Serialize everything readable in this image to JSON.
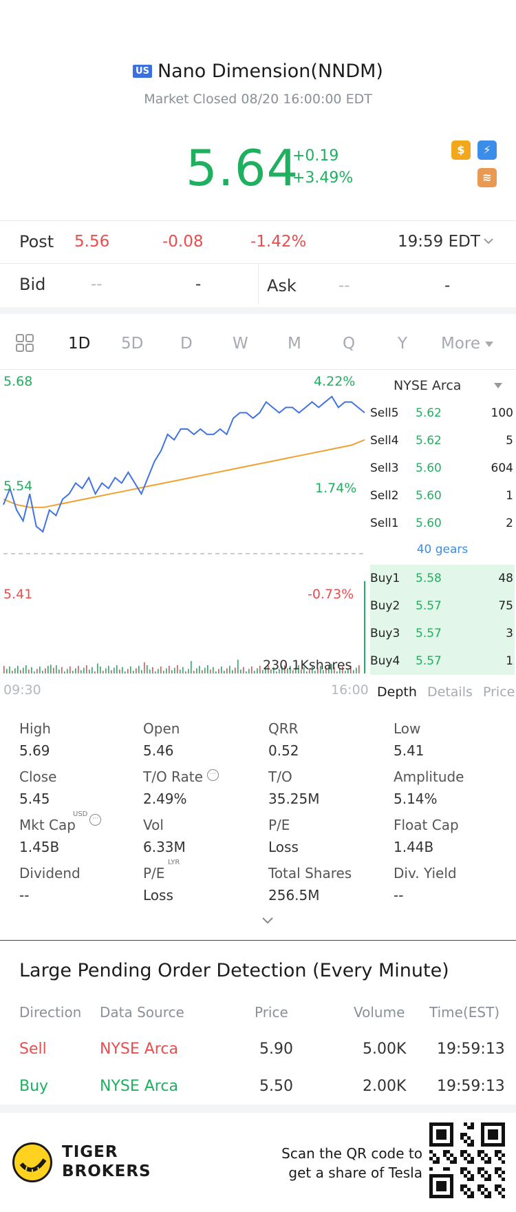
{
  "header": {
    "market_flag": "US",
    "title": "Nano Dimension(NNDM)",
    "status": "Market Closed 08/20 16:00:00 EDT",
    "price": "5.64",
    "change_abs": "+0.19",
    "change_pct": "+3.49%",
    "badges": [
      "dollar-icon",
      "flash-icon",
      "stack-icon"
    ]
  },
  "post": {
    "label": "Post",
    "price": "5.56",
    "change": "-0.08",
    "pct": "-1.42%",
    "time": "19:59 EDT"
  },
  "bid_ask": {
    "bid_label": "Bid",
    "bid_price": "--",
    "bid_size": "-",
    "ask_label": "Ask",
    "ask_price": "--",
    "ask_size": "-"
  },
  "chart_tabs": [
    "1D",
    "5D",
    "D",
    "W",
    "M",
    "Q",
    "Y",
    "More"
  ],
  "chart": {
    "y_high": "5.68",
    "y_mid": "5.54",
    "y_low": "5.41",
    "pct_high": "4.22%",
    "pct_mid": "1.74%",
    "pct_low": "-0.73%",
    "volume_label": "230.1Kshares",
    "x_start": "09:30",
    "x_end": "16:00"
  },
  "chart_data": {
    "type": "line",
    "x_range": [
      "09:30",
      "16:00"
    ],
    "ylim": [
      5.41,
      5.68
    ],
    "series": [
      {
        "values": [
          5.47,
          5.5,
          5.46,
          5.44,
          5.49,
          5.43,
          5.42,
          5.46,
          5.45,
          5.48,
          5.49,
          5.51,
          5.5,
          5.52,
          5.49,
          5.51,
          5.5,
          5.52,
          5.51,
          5.53,
          5.51,
          5.49,
          5.52,
          5.55,
          5.57,
          5.6,
          5.59,
          5.61,
          5.61,
          5.6,
          5.61,
          5.6,
          5.6,
          5.61,
          5.6,
          5.63,
          5.64,
          5.64,
          5.63,
          5.64,
          5.66,
          5.65,
          5.64,
          5.65,
          5.65,
          5.64,
          5.65,
          5.66,
          5.65,
          5.66,
          5.67,
          5.65,
          5.66,
          5.66,
          5.65,
          5.64
        ]
      },
      {
        "values": [
          5.48,
          5.47,
          5.465,
          5.465,
          5.47,
          5.475,
          5.48,
          5.485,
          5.49,
          5.495,
          5.5,
          5.505,
          5.51,
          5.515,
          5.52,
          5.525,
          5.53,
          5.535,
          5.54,
          5.545,
          5.55,
          5.555,
          5.56,
          5.565,
          5.57,
          5.575,
          5.58,
          5.59
        ]
      }
    ],
    "y_labels": [
      "5.68",
      "5.54",
      "5.41"
    ],
    "pct_labels": [
      "4.22%",
      "1.74%",
      "-0.73%"
    ],
    "prev_close": 5.45,
    "grid": false
  },
  "orderbook": {
    "exchange": "NYSE Arca",
    "sells": [
      {
        "label": "Sell5",
        "price": "5.62",
        "qty": "100"
      },
      {
        "label": "Sell4",
        "price": "5.62",
        "qty": "5"
      },
      {
        "label": "Sell3",
        "price": "5.60",
        "qty": "604"
      },
      {
        "label": "Sell2",
        "price": "5.60",
        "qty": "1"
      },
      {
        "label": "Sell1",
        "price": "5.60",
        "qty": "2"
      }
    ],
    "gears": "40 gears",
    "buys": [
      {
        "label": "Buy1",
        "price": "5.58",
        "qty": "48"
      },
      {
        "label": "Buy2",
        "price": "5.57",
        "qty": "75"
      },
      {
        "label": "Buy3",
        "price": "5.57",
        "qty": "3"
      },
      {
        "label": "Buy4",
        "price": "5.57",
        "qty": "1"
      }
    ],
    "tabs": [
      "Depth",
      "Details",
      "Price"
    ]
  },
  "stats": [
    [
      {
        "label": "High",
        "value": "5.69"
      },
      {
        "label": "Open",
        "value": "5.46"
      },
      {
        "label": "QRR",
        "value": "0.52"
      },
      {
        "label": "Low",
        "value": "5.41"
      }
    ],
    [
      {
        "label": "Close",
        "value": "5.45"
      },
      {
        "label": "T/O Rate",
        "value": "2.49%"
      },
      {
        "label": "T/O",
        "value": "35.25M"
      },
      {
        "label": "Amplitude",
        "value": "5.14%"
      }
    ],
    [
      {
        "label": "Mkt Cap",
        "value": "1.45B"
      },
      {
        "label": "Vol",
        "value": "6.33M"
      },
      {
        "label": "P/E",
        "value": "Loss"
      },
      {
        "label": "Float Cap",
        "value": "1.44B"
      }
    ],
    [
      {
        "label": "Dividend",
        "value": "--"
      },
      {
        "label": "P/E",
        "value": "Loss"
      },
      {
        "label": "Total Shares",
        "value": "256.5M"
      },
      {
        "label": "Div. Yield",
        "value": "--"
      }
    ]
  ],
  "stat_tags": {
    "usd": "USD",
    "lyr": "LYR"
  },
  "large_orders": {
    "title": "Large Pending Order Detection (Every Minute)",
    "headers": [
      "Direction",
      "Data Source",
      "Price",
      "Volume",
      "Time(EST)"
    ],
    "rows": [
      {
        "direction": "Sell",
        "source": "NYSE Arca",
        "price": "5.90",
        "volume": "5.00K",
        "time": "19:59:13"
      },
      {
        "direction": "Buy",
        "source": "NYSE Arca",
        "price": "5.50",
        "volume": "2.00K",
        "time": "19:59:13"
      }
    ]
  },
  "footer": {
    "brand_line1": "TIGER",
    "brand_line2": "BROKERS",
    "scan_line1": "Scan the QR code to",
    "scan_line2": "get a share of Tesla"
  },
  "colors": {
    "up": "#1fb05f",
    "down": "#ea4d4d",
    "line": "#3f73e0",
    "avg": "#f0a030"
  }
}
